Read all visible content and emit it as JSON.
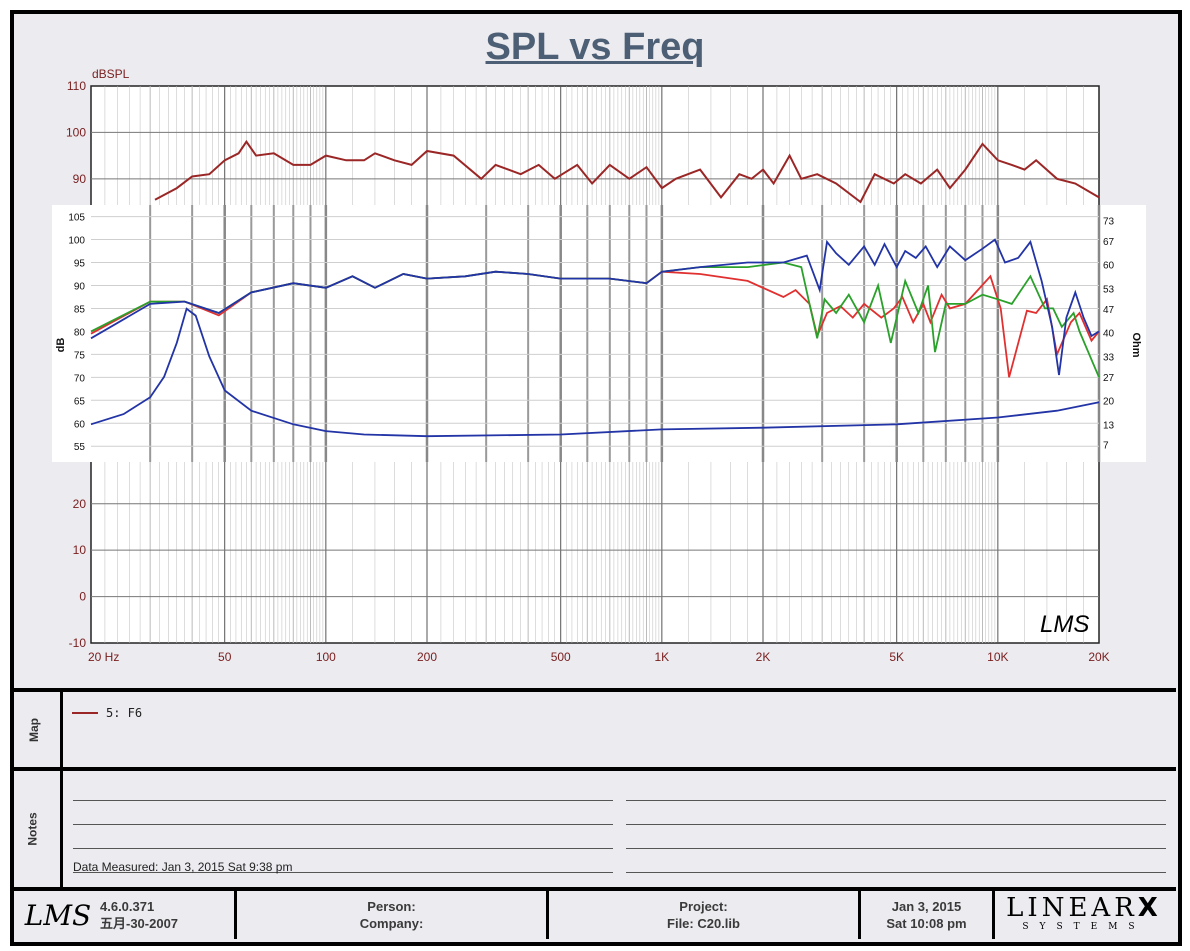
{
  "chart_title": "SPL vs Freq",
  "chart_data": [
    {
      "type": "line",
      "title": "SPL vs Freq",
      "ylabel": "dBSPL",
      "xscale": "log",
      "xlim": [
        20,
        20000
      ],
      "ylim": [
        -10,
        110
      ],
      "xticks": [
        {
          "v": 20,
          "label": "20  Hz"
        },
        {
          "v": 50,
          "label": "50"
        },
        {
          "v": 100,
          "label": "100"
        },
        {
          "v": 200,
          "label": "200"
        },
        {
          "v": 500,
          "label": "500"
        },
        {
          "v": 1000,
          "label": "1K"
        },
        {
          "v": 2000,
          "label": "2K"
        },
        {
          "v": 5000,
          "label": "5K"
        },
        {
          "v": 10000,
          "label": "10K"
        },
        {
          "v": 20000,
          "label": "20K"
        }
      ],
      "yticks": [
        {
          "v": 110,
          "label": "110"
        },
        {
          "v": 100,
          "label": "100"
        },
        {
          "v": 90,
          "label": "90"
        },
        {
          "v": 20,
          "label": "20"
        },
        {
          "v": 10,
          "label": "10"
        },
        {
          "v": 0,
          "label": "0"
        },
        {
          "v": -10,
          "label": "-10"
        }
      ],
      "grid": true,
      "series": [
        {
          "name": "5:  F6",
          "color": "#9b2626",
          "x": [
            31,
            36,
            40,
            45,
            50,
            55,
            58,
            62,
            70,
            80,
            90,
            100,
            115,
            130,
            140,
            160,
            180,
            200,
            240,
            290,
            320,
            380,
            430,
            480,
            560,
            620,
            700,
            800,
            900,
            1000,
            1100,
            1300,
            1500,
            1700,
            1850,
            2000,
            2150,
            2400,
            2600,
            2900,
            3300,
            3900,
            4300,
            4900,
            5300,
            5900,
            6600,
            7200,
            8000,
            9000,
            10000,
            11000,
            12000,
            13000,
            15000,
            17000,
            20000
          ],
          "y": [
            85.5,
            88,
            90.5,
            91,
            94,
            95.5,
            98,
            95,
            95.5,
            93,
            93,
            95,
            94,
            94,
            95.5,
            94,
            93,
            96,
            95,
            90,
            93,
            91,
            93,
            90,
            93,
            89,
            93,
            90,
            92.5,
            88,
            90,
            92,
            86,
            91,
            90,
            92,
            89,
            95,
            90,
            91,
            89,
            85,
            91,
            89,
            91,
            89,
            92,
            88,
            92,
            97.5,
            94,
            93,
            92,
            94,
            90,
            89,
            86
          ]
        }
      ]
    },
    {
      "type": "line",
      "ylabel": "dB",
      "y2label": "Ohm",
      "xscale": "log",
      "xlim": [
        20,
        20000
      ],
      "ylim": [
        52,
        106
      ],
      "y2lim": [
        2.5,
        75.5
      ],
      "yticks": [
        {
          "v": 105,
          "label": "105"
        },
        {
          "v": 100,
          "label": "100"
        },
        {
          "v": 95,
          "label": "95"
        },
        {
          "v": 90,
          "label": "90"
        },
        {
          "v": 85,
          "label": "85"
        },
        {
          "v": 80,
          "label": "80"
        },
        {
          "v": 75,
          "label": "75"
        },
        {
          "v": 70,
          "label": "70"
        },
        {
          "v": 65,
          "label": "65"
        },
        {
          "v": 60,
          "label": "60"
        },
        {
          "v": 55,
          "label": "55"
        }
      ],
      "y2ticks": [
        {
          "v": 73,
          "label": "73"
        },
        {
          "v": 67,
          "label": "67"
        },
        {
          "v": 60,
          "label": "60"
        },
        {
          "v": 53,
          "label": "53"
        },
        {
          "v": 47,
          "label": "47"
        },
        {
          "v": 40,
          "label": "40"
        },
        {
          "v": 33,
          "label": "33"
        },
        {
          "v": 27,
          "label": "27"
        },
        {
          "v": 20,
          "label": "20"
        },
        {
          "v": 13,
          "label": "13"
        },
        {
          "v": 7,
          "label": "7"
        }
      ],
      "grid": true,
      "series": [
        {
          "color": "#e03030",
          "x": [
            20,
            30,
            38,
            48,
            60,
            80,
            100,
            120,
            140,
            170,
            200,
            260,
            320,
            400,
            500,
            700,
            900,
            1000,
            1300,
            1800,
            2300,
            2500,
            2750,
            2900,
            3100,
            3400,
            3700,
            4000,
            4500,
            4900,
            5200,
            5600,
            6000,
            6300,
            6800,
            7200,
            8000,
            9500,
            10200,
            10800,
            12200,
            13000,
            14000,
            15000,
            16500,
            17500,
            19000,
            20000
          ],
          "y": [
            79.5,
            86.5,
            86.5,
            83.5,
            88.5,
            90.5,
            89.5,
            92,
            89.5,
            92.5,
            91.5,
            92,
            93,
            92.5,
            91.5,
            91.5,
            90.5,
            93,
            92.5,
            91,
            87.5,
            89,
            86,
            79,
            84,
            85.5,
            83,
            86,
            83,
            85,
            87.5,
            82,
            86,
            82,
            88,
            85,
            86,
            92,
            85,
            70,
            84.5,
            84,
            87,
            75,
            82,
            84,
            78,
            80
          ]
        },
        {
          "color": "#2aa12a",
          "x": [
            20,
            30,
            38,
            48,
            60,
            80,
            100,
            120,
            140,
            170,
            200,
            260,
            320,
            400,
            500,
            700,
            900,
            1000,
            1300,
            1800,
            2300,
            2600,
            2750,
            2900,
            3050,
            3300,
            3600,
            4000,
            4400,
            4800,
            5300,
            5800,
            6200,
            6500,
            7000,
            8000,
            9000,
            10000,
            11000,
            12500,
            13800,
            14600,
            15500,
            16800,
            17500,
            20000
          ],
          "y": [
            80,
            86.5,
            86.5,
            84,
            88.5,
            90.5,
            89.5,
            92,
            89.5,
            92.5,
            91.5,
            92,
            93,
            92.5,
            91.5,
            91.5,
            90.5,
            93,
            94,
            94,
            95,
            94,
            86,
            78.5,
            87,
            84,
            88,
            82,
            90,
            77.5,
            91,
            84,
            90,
            75.5,
            86,
            86,
            88,
            87,
            86,
            92,
            85,
            85,
            81,
            84,
            80,
            70
          ]
        },
        {
          "color": "#2234a6",
          "x": [
            20,
            30,
            38,
            48,
            60,
            80,
            100,
            120,
            140,
            170,
            200,
            260,
            320,
            400,
            500,
            700,
            900,
            1000,
            1300,
            1800,
            2300,
            2700,
            2950,
            3100,
            3300,
            3600,
            4000,
            4300,
            4600,
            5000,
            5300,
            5700,
            6100,
            6600,
            7200,
            8000,
            9000,
            9800,
            10500,
            11500,
            12500,
            13500,
            14500,
            15200,
            16000,
            17000,
            18000,
            19000,
            20000
          ],
          "y": [
            78.5,
            86,
            86.5,
            84,
            88.5,
            90.5,
            89.5,
            92,
            89.5,
            92.5,
            91.5,
            92,
            93,
            92.5,
            91.5,
            91.5,
            90.5,
            93,
            94,
            95,
            95,
            96.5,
            89,
            99.5,
            97,
            94.5,
            98.5,
            94.5,
            99,
            94,
            97.5,
            96,
            98.5,
            94,
            98.5,
            95.5,
            98,
            100,
            95,
            96,
            99.5,
            91,
            81,
            70.5,
            83,
            88.5,
            83,
            79,
            80
          ]
        },
        {
          "axis": "y2",
          "color": "#2234a6",
          "x": [
            20,
            25,
            30,
            33,
            36,
            38.5,
            41,
            45,
            50,
            60,
            80,
            100,
            130,
            200,
            500,
            1000,
            2000,
            5000,
            10000,
            15000,
            20000
          ],
          "y": [
            13,
            16,
            21,
            27,
            37,
            47,
            45,
            33,
            23,
            17,
            13,
            11,
            10,
            9.5,
            10,
            11.5,
            12,
            13,
            15,
            17,
            19.5
          ]
        }
      ]
    }
  ],
  "panels": {
    "map": {
      "label": "Map",
      "entries": [
        {
          "label": "5:  F6",
          "color": "#9b2626"
        }
      ]
    },
    "notes": {
      "label": "Notes",
      "measured": "Data Measured: Jan  3, 2015  Sat  9:38 pm"
    }
  },
  "footer": {
    "logo": "LMS",
    "version": "4.6.0.371",
    "build_date": "五月-30-2007",
    "person": "Person:",
    "company": "Company:",
    "project": "Project:",
    "file": "File: C20.lib",
    "date": "Jan  3, 2015",
    "time": "Sat 10:08 pm",
    "brand": "LINEAR",
    "brand_x": "X",
    "brand_sub": "SYSTEMS"
  }
}
